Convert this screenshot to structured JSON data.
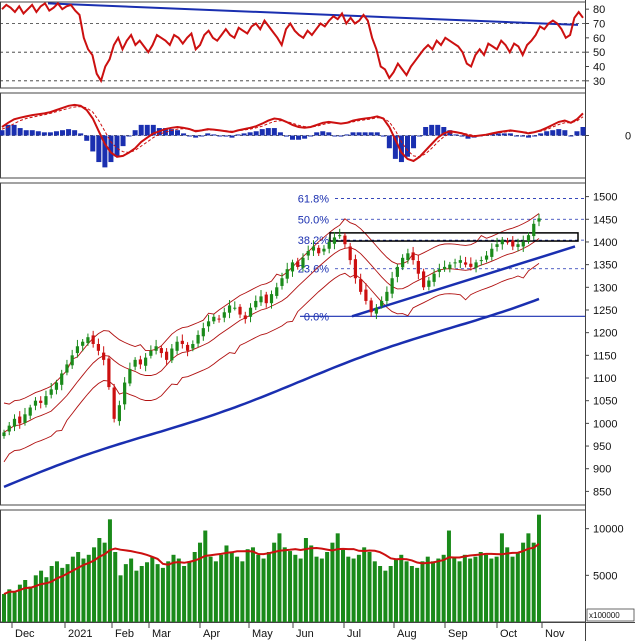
{
  "chart_data": [
    {
      "type": "line",
      "panel": "rsi",
      "ylim": [
        25,
        85
      ],
      "y_ticks": [
        30,
        40,
        50,
        60,
        70,
        80
      ],
      "dashed_levels": [
        30,
        50,
        70
      ],
      "trendline": {
        "from": {
          "date": "2020-12-07",
          "value": 84
        },
        "to": {
          "date": "2021-11-14",
          "value": 69
        }
      },
      "series": [
        {
          "values": [
            80,
            83,
            81,
            78,
            82,
            77,
            80,
            83,
            78,
            82,
            84,
            79,
            81,
            84,
            80,
            82,
            83,
            79,
            76,
            60,
            52,
            48,
            35,
            30,
            40,
            45,
            55,
            60,
            52,
            58,
            62,
            55,
            58,
            54,
            50,
            55,
            62,
            60,
            58,
            55,
            62,
            60,
            56,
            60,
            63,
            52,
            55,
            62,
            65,
            60,
            58,
            62,
            66,
            62,
            60,
            67,
            65,
            63,
            68,
            70,
            66,
            72,
            68,
            64,
            60,
            55,
            66,
            70,
            65,
            62,
            60,
            65,
            62,
            66,
            70,
            68,
            72,
            75,
            73,
            77,
            70,
            74,
            70,
            72,
            76,
            72,
            60,
            52,
            40,
            38,
            32,
            36,
            42,
            38,
            34,
            40,
            44,
            48,
            52,
            55,
            52,
            58,
            55,
            60,
            58,
            56,
            54,
            50,
            42,
            40,
            48,
            52,
            48,
            56,
            54,
            52,
            58,
            55,
            50,
            56,
            54,
            48,
            55,
            58,
            62,
            68,
            66,
            70,
            72,
            70,
            66,
            60,
            62,
            74,
            78,
            74
          ]
        }
      ]
    },
    {
      "type": "bar",
      "panel": "macd",
      "ylim": [
        -1,
        1
      ],
      "y_ticks": [
        0
      ],
      "zero_line": true,
      "series": [
        {
          "kind": "line",
          "values": [
            0.2,
            0.3,
            0.38,
            0.42,
            0.45,
            0.48,
            0.5,
            0.52,
            0.55,
            0.6,
            0.65,
            0.7,
            0.72,
            0.7,
            0.6,
            0.4,
            0.1,
            -0.2,
            -0.4,
            -0.5,
            -0.48,
            -0.4,
            -0.3,
            -0.15,
            -0.05,
            0.05,
            0.1,
            0.15,
            0.18,
            0.2,
            0.18,
            0.15,
            0.1,
            0.12,
            0.15,
            0.14,
            0.12,
            0.1,
            0.08,
            0.12,
            0.15,
            0.18,
            0.22,
            0.28,
            0.35,
            0.4,
            0.38,
            0.32,
            0.25,
            0.2,
            0.18,
            0.2,
            0.25,
            0.3,
            0.32,
            0.3,
            0.28,
            0.3,
            0.35,
            0.38,
            0.4,
            0.42,
            0.45,
            0.4,
            0.2,
            -0.1,
            -0.4,
            -0.55,
            -0.6,
            -0.5,
            -0.35,
            -0.2,
            -0.05,
            0.05,
            0.1,
            0.08,
            0.05,
            0.0,
            -0.02,
            0.0,
            0.02,
            0.05,
            0.08,
            0.1,
            0.12,
            0.1,
            0.08,
            0.05,
            0.08,
            0.12,
            0.18,
            0.25,
            0.32,
            0.35,
            0.3,
            0.38,
            0.52
          ]
        },
        {
          "kind": "signal",
          "values": [
            0.15,
            0.2,
            0.28,
            0.35,
            0.4,
            0.43,
            0.46,
            0.49,
            0.52,
            0.56,
            0.6,
            0.64,
            0.67,
            0.68,
            0.65,
            0.55,
            0.35,
            0.1,
            -0.15,
            -0.3,
            -0.38,
            -0.4,
            -0.35,
            -0.25,
            -0.15,
            -0.05,
            0.03,
            0.08,
            0.12,
            0.15,
            0.16,
            0.15,
            0.12,
            0.12,
            0.13,
            0.13,
            0.12,
            0.11,
            0.1,
            0.11,
            0.13,
            0.15,
            0.18,
            0.22,
            0.28,
            0.33,
            0.35,
            0.33,
            0.29,
            0.24,
            0.21,
            0.2,
            0.22,
            0.26,
            0.29,
            0.3,
            0.29,
            0.29,
            0.32,
            0.35,
            0.37,
            0.39,
            0.42,
            0.41,
            0.32,
            0.12,
            -0.15,
            -0.35,
            -0.48,
            -0.5,
            -0.43,
            -0.3,
            -0.15,
            -0.03,
            0.05,
            0.07,
            0.06,
            0.03,
            0.0,
            0.0,
            0.01,
            0.03,
            0.06,
            0.08,
            0.1,
            0.1,
            0.09,
            0.07,
            0.08,
            0.1,
            0.14,
            0.2,
            0.26,
            0.3,
            0.3,
            0.34,
            0.44
          ]
        }
      ]
    },
    {
      "type": "candlestick",
      "panel": "price",
      "ylim": [
        820,
        1530
      ],
      "y_ticks": [
        850,
        900,
        950,
        1000,
        1050,
        1100,
        1150,
        1200,
        1250,
        1300,
        1350,
        1400,
        1450,
        1500
      ],
      "x_labels": [
        "Dec",
        "2021",
        "Feb",
        "Mar",
        "Apr",
        "May",
        "Jun",
        "Jul",
        "Aug",
        "Sep",
        "Oct",
        "Nov"
      ],
      "fibonacci": [
        {
          "label": "61.8%",
          "value": 1496
        },
        {
          "label": "50.0%",
          "value": 1450
        },
        {
          "label": "38.2%",
          "value": 1404
        },
        {
          "label": "23.6%",
          "value": 1341
        },
        {
          "label": "0.0%",
          "value": 1236
        }
      ],
      "resistance_zone": [
        1402,
        1420
      ],
      "close": [
        980,
        995,
        1010,
        1000,
        1020,
        1035,
        1050,
        1045,
        1060,
        1075,
        1090,
        1110,
        1130,
        1150,
        1170,
        1180,
        1190,
        1175,
        1160,
        1140,
        1080,
        1010,
        1040,
        1090,
        1120,
        1140,
        1130,
        1145,
        1160,
        1170,
        1155,
        1140,
        1165,
        1180,
        1175,
        1160,
        1175,
        1195,
        1210,
        1225,
        1235,
        1230,
        1245,
        1260,
        1255,
        1240,
        1230,
        1255,
        1270,
        1280,
        1265,
        1285,
        1300,
        1320,
        1340,
        1355,
        1345,
        1365,
        1380,
        1390,
        1375,
        1385,
        1400,
        1410,
        1415,
        1395,
        1360,
        1320,
        1290,
        1270,
        1245,
        1255,
        1270,
        1290,
        1320,
        1345,
        1365,
        1375,
        1360,
        1330,
        1300,
        1315,
        1330,
        1340,
        1345,
        1350,
        1355,
        1360,
        1350,
        1345,
        1355,
        1360,
        1370,
        1385,
        1395,
        1405,
        1400,
        1390,
        1395,
        1400,
        1415,
        1440,
        1452
      ]
    },
    {
      "type": "bar",
      "panel": "volume",
      "ylim": [
        0,
        12000
      ],
      "y_ticks": [
        5000,
        10000
      ],
      "multiplier_label": "x100000",
      "values": [
        3000,
        3500,
        3200,
        4000,
        4500,
        3800,
        5000,
        5500,
        4800,
        6000,
        6500,
        5800,
        6200,
        7000,
        7500,
        6800,
        7200,
        8000,
        9000,
        8500,
        11000,
        7500,
        5000,
        6200,
        6800,
        5500,
        6000,
        6400,
        7000,
        6200,
        5800,
        6500,
        7200,
        6800,
        6000,
        6500,
        7500,
        8500,
        9800,
        7000,
        6500,
        7200,
        8200,
        7500,
        7000,
        6500,
        7800,
        8000,
        7200,
        6800,
        7500,
        8500,
        9500,
        8000,
        7600,
        7200,
        6800,
        9000,
        8200,
        7000,
        6800,
        7500,
        8500,
        9500,
        7800,
        7000,
        6800,
        7200,
        8000,
        7500,
        6500,
        6000,
        5500,
        6000,
        6800,
        7200,
        6500,
        6000,
        5800,
        6500,
        7000,
        6500,
        6800,
        7200,
        9800,
        7000,
        6500,
        7200,
        6800,
        7000,
        7500,
        7200,
        6800,
        7000,
        9500,
        8000,
        7000,
        7500,
        8500,
        9500,
        8500,
        11500
      ]
    }
  ]
}
